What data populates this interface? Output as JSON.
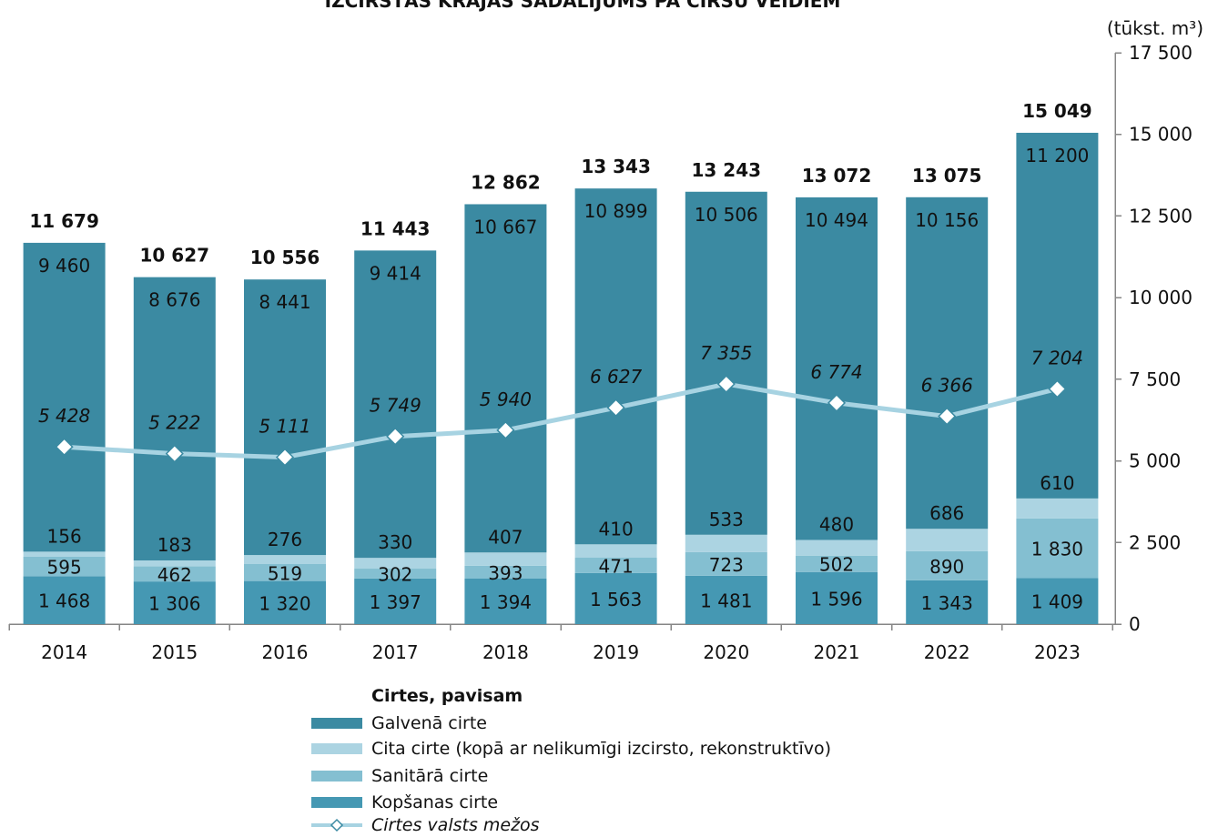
{
  "chart_data": {
    "type": "bar",
    "stacked": true,
    "title": "IZCIRSTĀS KRĀJAS SADALĪJUMS PA CIRŠU VEIDIEM",
    "unit_label": "(tūkst. m³)",
    "categories": [
      "2014",
      "2015",
      "2016",
      "2017",
      "2018",
      "2019",
      "2020",
      "2021",
      "2022",
      "2023"
    ],
    "ylim": [
      0,
      17500
    ],
    "yticks": [
      0,
      2500,
      5000,
      7500,
      10000,
      12500,
      15000,
      17500
    ],
    "y_axis_position": "right",
    "grid": false,
    "legend_position": "bottom",
    "series": [
      {
        "name": "Kopšanas cirte",
        "type": "bar",
        "color": "#4598b3",
        "values": [
          1468,
          1306,
          1320,
          1397,
          1394,
          1563,
          1481,
          1596,
          1343,
          1409
        ]
      },
      {
        "name": "Sanitārā cirte",
        "type": "bar",
        "color": "#84bfd1",
        "values": [
          595,
          462,
          519,
          302,
          393,
          471,
          723,
          502,
          890,
          1830
        ]
      },
      {
        "name": "Cita cirte (kopā ar nelikumīgi izcirsto, rekonstruktīvo)",
        "type": "bar",
        "color": "#acd4e2",
        "values": [
          156,
          183,
          276,
          330,
          407,
          410,
          533,
          480,
          686,
          610
        ]
      },
      {
        "name": "Galvenā cirte",
        "type": "bar",
        "color": "#3b8aa2",
        "values": [
          9460,
          8676,
          8441,
          9414,
          10667,
          10899,
          10506,
          10494,
          10156,
          11200
        ]
      },
      {
        "name": "Cirtes valsts mežos",
        "type": "line",
        "marker": "diamond",
        "color": "#a7d3e2",
        "marker_edge_color": "#3b8aa2",
        "values": [
          5428,
          5222,
          5111,
          5749,
          5940,
          6627,
          7355,
          6774,
          6366,
          7204
        ]
      }
    ],
    "totals": {
      "name": "Cirtes, pavisam",
      "values": [
        11679,
        10627,
        10556,
        11443,
        12862,
        13343,
        13243,
        13072,
        13075,
        15049
      ]
    }
  }
}
